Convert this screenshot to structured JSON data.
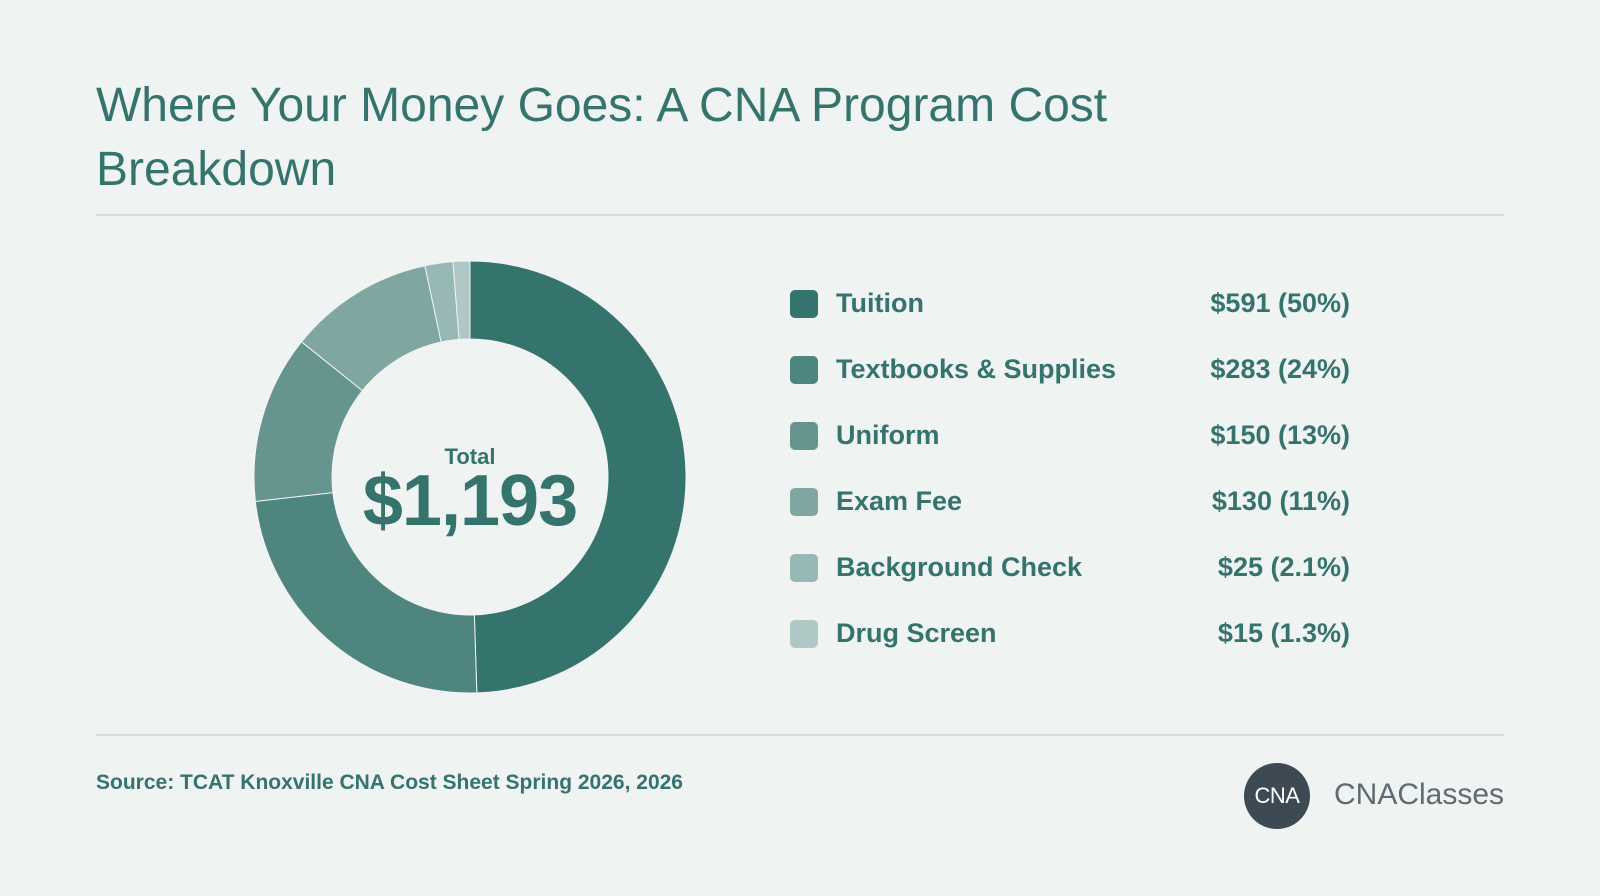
{
  "title": "Where Your Money Goes: A CNA Program Cost Breakdown",
  "center": {
    "label": "Total",
    "value": "$1,193"
  },
  "chart_data": {
    "type": "pie",
    "donut": true,
    "title": "Where Your Money Goes: A CNA Program Cost Breakdown",
    "total": 1193,
    "slices": [
      {
        "name": "Tuition",
        "value": 591,
        "label": "$591 (50%)",
        "color": "#35736d"
      },
      {
        "name": "Textbooks & Supplies",
        "value": 283,
        "label": "$283 (24%)",
        "color": "#4f857f"
      },
      {
        "name": "Uniform",
        "value": 150,
        "label": "$150 (13%)",
        "color": "#66948f"
      },
      {
        "name": "Exam Fee",
        "value": 130,
        "label": "$130 (11%)",
        "color": "#80a6a2"
      },
      {
        "name": "Background Check",
        "value": 25,
        "label": "$25 (2.1%)",
        "color": "#98b8b5"
      },
      {
        "name": "Drug Screen",
        "value": 15,
        "label": "$15 (1.3%)",
        "color": "#afc8c5"
      }
    ],
    "legend_position": "right"
  },
  "source": "Source: TCAT Knoxville CNA Cost Sheet Spring 2026, 2026",
  "brand": {
    "logo_text": "CNA",
    "name": "CNAClasses"
  }
}
